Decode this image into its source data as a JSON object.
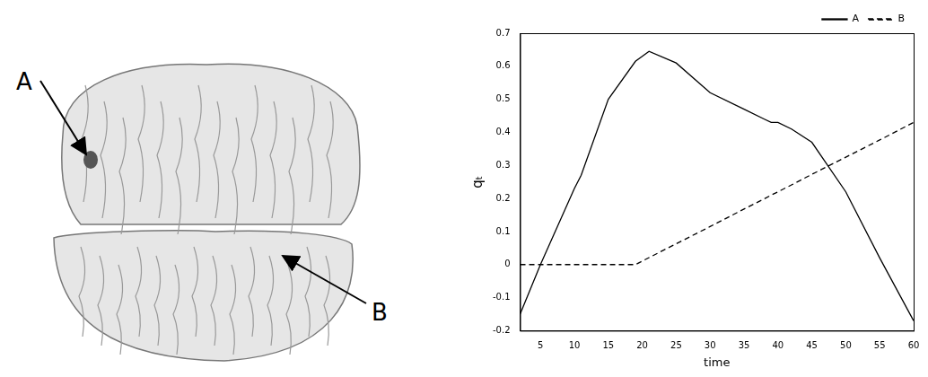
{
  "chart_data": {
    "type": "line",
    "x_label": "time",
    "y_label": "qₜ",
    "x": [
      2,
      5,
      10,
      11,
      15,
      19,
      20,
      21,
      25,
      30,
      35,
      38,
      39,
      40,
      42,
      45,
      50,
      55,
      60
    ],
    "series": [
      {
        "name": "A",
        "color": "#000000",
        "line_style": "solid",
        "marker": "none",
        "values": [
          -0.15,
          0.0,
          0.23,
          0.27,
          0.5,
          0.615,
          0.63,
          0.645,
          0.61,
          0.52,
          0.47,
          0.44,
          0.43,
          0.43,
          0.41,
          0.37,
          0.22,
          0.02,
          -0.17
        ]
      },
      {
        "name": "B",
        "color": "#000000",
        "line_style": "dashed",
        "marker": "none",
        "values": [
          0,
          0,
          0,
          0,
          0,
          0,
          0.0105,
          0.021,
          0.063,
          0.115,
          0.168,
          0.199,
          0.21,
          0.22,
          0.241,
          0.273,
          0.325,
          0.377,
          0.43
        ]
      }
    ],
    "xlim": [
      2,
      60
    ],
    "xticks": [
      5,
      10,
      15,
      20,
      25,
      30,
      35,
      40,
      45,
      50,
      55,
      60
    ],
    "ylim": [
      -0.2,
      0.7
    ],
    "yticks": [
      -0.2,
      -0.1,
      0,
      0.1,
      0.2,
      0.3,
      0.4,
      0.5,
      0.6,
      0.7
    ],
    "grid": false,
    "legend": "upper right"
  },
  "figure": {
    "markers": [
      {
        "label": "A"
      },
      {
        "label": "B"
      }
    ]
  }
}
